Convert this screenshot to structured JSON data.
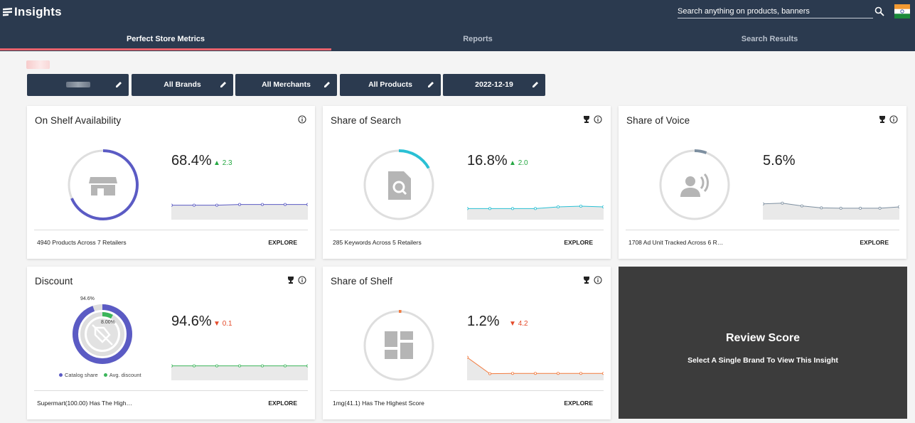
{
  "app": {
    "title": "Insights"
  },
  "search": {
    "placeholder": "Search anything on products, banners"
  },
  "tabs": [
    {
      "label": "Perfect Store Metrics",
      "active": true
    },
    {
      "label": "Reports",
      "active": false
    },
    {
      "label": "Search Results",
      "active": false
    }
  ],
  "filters": [
    {
      "label": ""
    },
    {
      "label": "All Brands"
    },
    {
      "label": "All Merchants"
    },
    {
      "label": "All Products"
    },
    {
      "label": "2022-12-19"
    }
  ],
  "cards": {
    "on_shelf": {
      "title": "On Shelf Availability",
      "value": "68.4%",
      "delta": "2.3",
      "delta_dir": "up",
      "footer": "4940 Products Across 7 Retailers",
      "explore": "EXPLORE",
      "ring_fraction": 0.684,
      "series": [
        0.3,
        0.3,
        0.3,
        0.32,
        0.32,
        0.32,
        0.32
      ]
    },
    "share_of_search": {
      "title": "Share of Search",
      "value": "16.8%",
      "delta": "2.0",
      "delta_dir": "up",
      "footer": "285 Keywords Across 5 Retailers",
      "explore": "EXPLORE",
      "ring_fraction": 0.168,
      "series": [
        0.2,
        0.2,
        0.2,
        0.2,
        0.25,
        0.27,
        0.25
      ]
    },
    "share_of_voice": {
      "title": "Share of Voice",
      "value": "5.6%",
      "footer": "1708 Ad Unit Tracked Across 6 R…",
      "explore": "EXPLORE",
      "ring_fraction": 0.056,
      "series": [
        0.34,
        0.36,
        0.28,
        0.22,
        0.21,
        0.21,
        0.21,
        0.25
      ]
    },
    "discount": {
      "title": "Discount",
      "value": "94.6%",
      "delta": "0.1",
      "delta_dir": "down",
      "footer": "Supermart(100.00) Has The High…",
      "explore": "EXPLORE",
      "outer_label": "94.6%",
      "inner_label": "8.00%",
      "catalog_share": 0.946,
      "avg_discount": 0.08,
      "legend": [
        "Catalog share",
        "Avg. discount"
      ],
      "series": [
        0.3,
        0.3,
        0.3,
        0.3,
        0.3,
        0.3,
        0.3
      ]
    },
    "share_of_shelf": {
      "title": "Share of Shelf",
      "value": "1.2%",
      "delta": "4.2",
      "delta_dir": "down",
      "footer": "1mg(41.1) Has The Highest Score",
      "explore": "EXPLORE",
      "ring_fraction": 0.012,
      "series": [
        0.55,
        0.07,
        0.08,
        0.08,
        0.08,
        0.08,
        0.08
      ]
    },
    "review_score": {
      "title": "Review Score",
      "message": "Select A Single Brand To View This Insight"
    }
  },
  "colors": {
    "nav": "#2b3a4f",
    "accent_tab": "#e8616b",
    "osa": "#5b5bc4",
    "sos": "#2ac0d4",
    "sov": "#7d8fa0",
    "discount_outer": "#5b5bc4",
    "discount_inner": "#3bb55a",
    "shelf": "#f27a3e",
    "up": "#26a843",
    "down": "#e44b2b"
  }
}
